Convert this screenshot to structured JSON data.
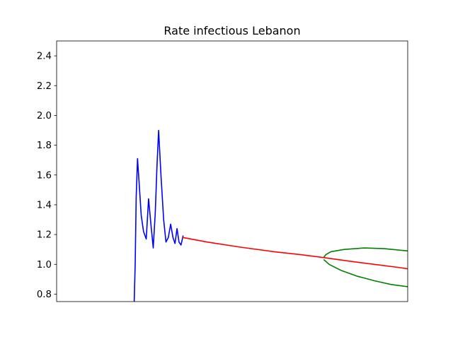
{
  "chart_data": {
    "type": "line",
    "title": "Rate infectious Lebanon",
    "xlabel": "",
    "ylabel": "",
    "x_ticks_visible": false,
    "xlim": [
      0,
      105
    ],
    "ylim": [
      0.75,
      2.5
    ],
    "yticks": [
      0.8,
      1.0,
      1.2,
      1.4,
      1.6,
      1.8,
      2.0,
      2.2,
      2.4
    ],
    "ytick_labels": [
      "0.8",
      "1.0",
      "1.2",
      "1.4",
      "1.6",
      "1.8",
      "2.0",
      "2.2",
      "2.4"
    ],
    "grid": false,
    "legend": "none",
    "series": [
      {
        "color": "#0000ff",
        "points": [
          [
            23.2,
            0.75
          ],
          [
            23.5,
            1.0
          ],
          [
            23.8,
            1.45
          ],
          [
            24.2,
            1.71
          ],
          [
            24.8,
            1.5
          ],
          [
            25.3,
            1.33
          ],
          [
            26.0,
            1.22
          ],
          [
            26.8,
            1.17
          ],
          [
            27.5,
            1.44
          ],
          [
            28.2,
            1.27
          ],
          [
            28.9,
            1.11
          ],
          [
            29.5,
            1.35
          ],
          [
            30.0,
            1.65
          ],
          [
            30.5,
            1.9
          ],
          [
            31.2,
            1.6
          ],
          [
            32.0,
            1.3
          ],
          [
            32.7,
            1.15
          ],
          [
            33.4,
            1.18
          ],
          [
            34.1,
            1.27
          ],
          [
            34.8,
            1.18
          ],
          [
            35.4,
            1.14
          ],
          [
            36.0,
            1.24
          ],
          [
            36.6,
            1.15
          ],
          [
            37.2,
            1.13
          ],
          [
            37.8,
            1.19
          ]
        ]
      },
      {
        "color": "#ff0000",
        "points": [
          [
            37.8,
            1.18
          ],
          [
            45,
            1.15
          ],
          [
            55,
            1.115
          ],
          [
            65,
            1.085
          ],
          [
            73,
            1.065
          ],
          [
            80,
            1.045
          ],
          [
            88,
            1.02
          ],
          [
            95,
            1.0
          ],
          [
            102,
            0.98
          ],
          [
            105,
            0.97
          ]
        ]
      },
      {
        "color": "#008000",
        "points": [
          [
            80,
            1.05
          ],
          [
            80.5,
            1.065
          ],
          [
            82,
            1.085
          ],
          [
            86,
            1.1
          ],
          [
            92,
            1.11
          ],
          [
            98,
            1.105
          ],
          [
            105,
            1.09
          ]
        ]
      },
      {
        "color": "#008000",
        "points": [
          [
            80,
            1.03
          ],
          [
            81.5,
            1.0
          ],
          [
            85,
            0.96
          ],
          [
            90,
            0.92
          ],
          [
            95,
            0.89
          ],
          [
            100,
            0.865
          ],
          [
            105,
            0.85
          ]
        ]
      }
    ]
  }
}
